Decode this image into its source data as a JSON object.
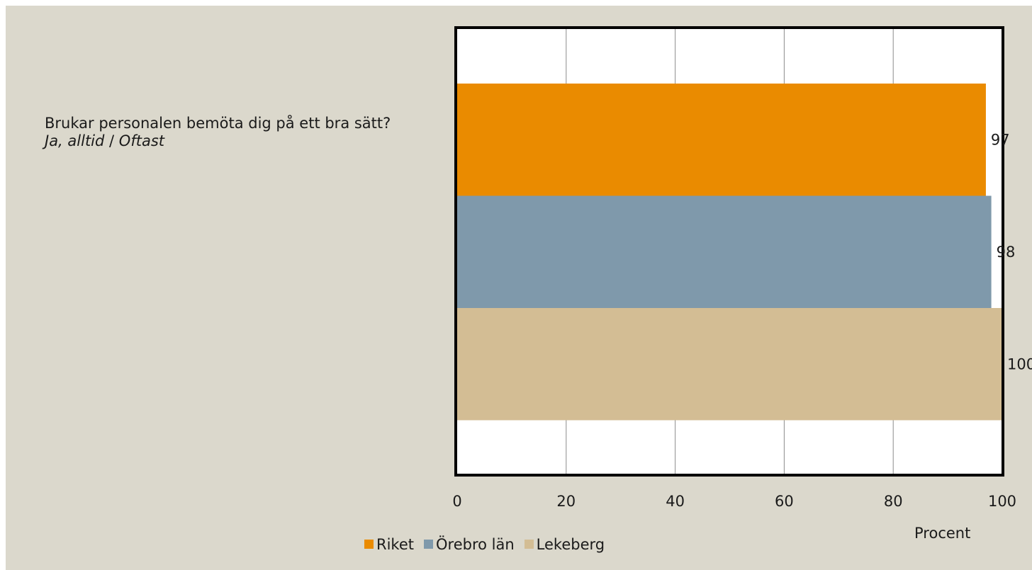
{
  "question": {
    "text": "Brukar personalen bemöta dig på ett bra sätt?",
    "answer_a": "Ja, alltid",
    "separator": " / ",
    "answer_b": "Oftast"
  },
  "chart_data": {
    "type": "bar",
    "orientation": "horizontal",
    "title": "",
    "xlabel": "Procent",
    "ylabel": "",
    "xlim": [
      0,
      100
    ],
    "x_ticks": [
      0,
      20,
      40,
      60,
      80,
      100
    ],
    "grid": true,
    "legend_position": "bottom",
    "series": [
      {
        "name": "Riket",
        "value": 97,
        "color": "#ea8b00"
      },
      {
        "name": "Örebro län",
        "value": 98,
        "color": "#7f99ab"
      },
      {
        "name": "Lekeberg",
        "value": 100,
        "color": "#d3bd94"
      }
    ]
  }
}
